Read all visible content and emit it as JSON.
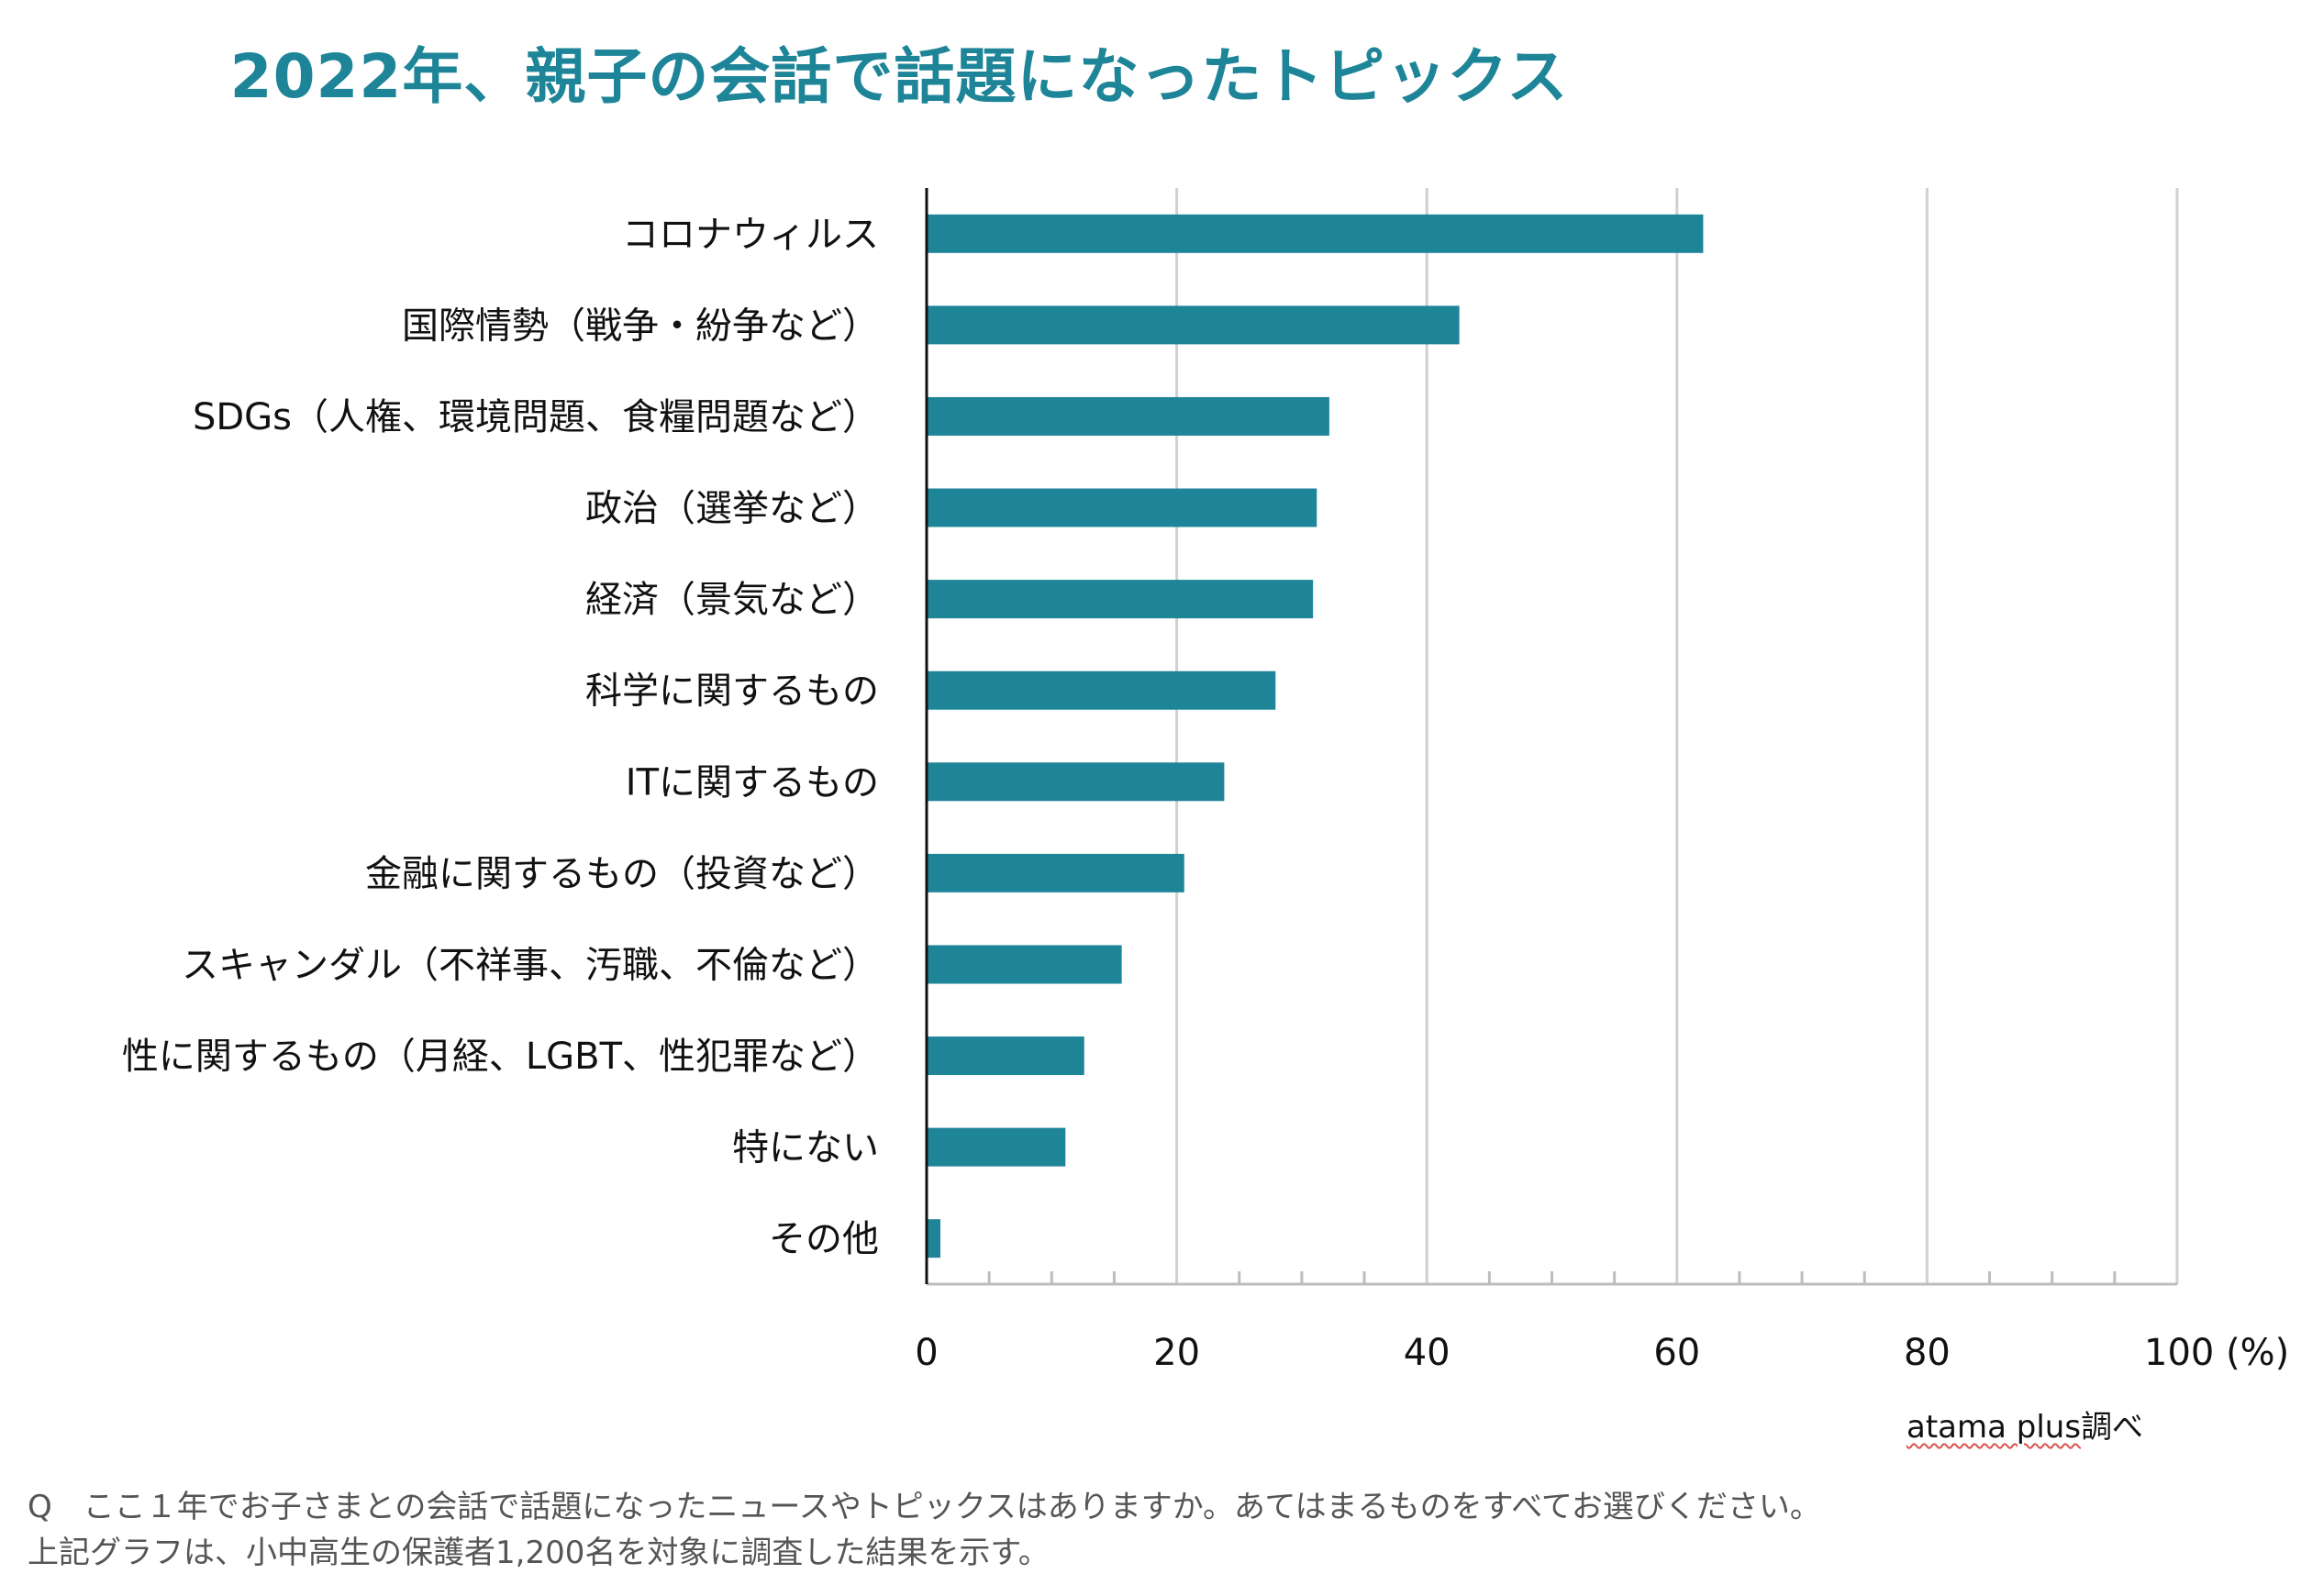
{
  "chart_data": {
    "type": "bar",
    "orientation": "horizontal",
    "title": "2022年、親子の会話で話題になったトピックス",
    "categories": [
      "コロナウィルス",
      "国際情勢（戦争・紛争など）",
      "SDGs（人権、環境問題、食糧問題など）",
      "政治（選挙など）",
      "経済（景気など）",
      "科学に関するもの",
      "ITに関するもの",
      "金融に関するもの（投資など）",
      "スキャンダル（不祥事、汚職、不倫など）",
      "性に関するもの（月経、LGBT、性犯罪など）",
      "特にない",
      "その他"
    ],
    "values": [
      62.1,
      42.6,
      32.2,
      31.2,
      30.9,
      27.9,
      23.8,
      20.6,
      15.6,
      12.6,
      11.1,
      1.1
    ],
    "xlim": [
      0,
      100
    ],
    "xticks": [
      0,
      20,
      40,
      60,
      80,
      100
    ],
    "xunit": "(%)",
    "color": "#1e8599",
    "grid": true
  },
  "source": {
    "brand": "atama plus",
    "suffix": "調べ"
  },
  "footnote": {
    "question": "Q　ここ１年でお子さまとの会話で話題になったニュースやトピックスはありますか。あてはまるものをすべてお選びください。",
    "note": "上記グラフは、小中高生の保護者1,200名を対象に調査した結果を示す。"
  }
}
